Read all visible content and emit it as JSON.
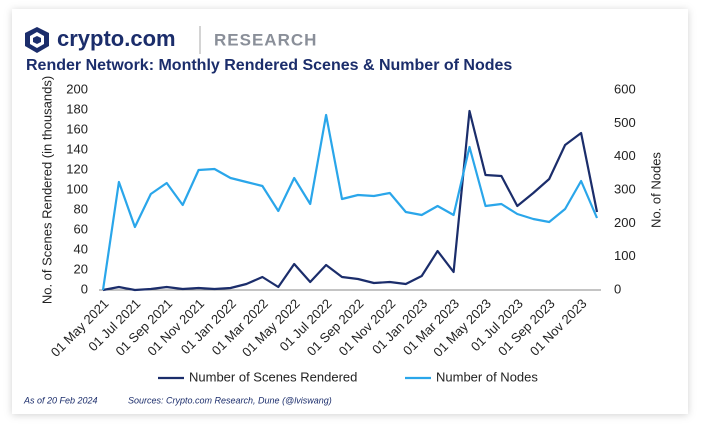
{
  "header": {
    "brand": "crypto.com",
    "section": "RESEARCH"
  },
  "chart_data": {
    "type": "line",
    "title": "Render Network: Monthly Rendered Scenes & Number of Nodes",
    "y_label": "No. of Scenes Rendered (in thousands)",
    "y2_label": "No. of Nodes",
    "categories": [
      "01 May 2021",
      null,
      "01 Jul 2021",
      null,
      "01 Sep 2021",
      null,
      "01 Nov 2021",
      null,
      "01 Jan 2022",
      null,
      "01 Mar 2022",
      null,
      "01 May 2022",
      null,
      "01 Jul 2022",
      null,
      "01 Sep 2022",
      null,
      "01 Nov 2022",
      null,
      "01 Jan 2023",
      null,
      "01 Mar 2023",
      null,
      "01 May 2023",
      null,
      "01 Jul 2023",
      null,
      "01 Sep 2023",
      null,
      "01 Nov 2023",
      null
    ],
    "series": [
      {
        "name": "Number of Scenes Rendered",
        "color": "#1b2d6b",
        "axis": "y",
        "values": [
          0,
          3,
          0,
          1,
          3,
          1,
          2,
          1,
          2,
          6,
          13,
          3,
          26,
          8,
          25,
          13,
          11,
          7,
          8,
          6,
          14,
          39,
          18,
          179,
          115,
          114,
          84,
          97,
          111,
          145,
          157,
          78
        ]
      },
      {
        "name": "Number of Nodes",
        "color": "#2aa6ea",
        "axis": "y2",
        "values": [
          0,
          324,
          189,
          288,
          321,
          255,
          360,
          363,
          336,
          324,
          312,
          237,
          336,
          258,
          525,
          273,
          285,
          282,
          291,
          234,
          225,
          252,
          225,
          429,
          252,
          258,
          228,
          213,
          204,
          243,
          327,
          216
        ]
      }
    ],
    "ylim": [
      0,
      200
    ],
    "yticks": [
      0,
      20,
      40,
      60,
      80,
      100,
      120,
      140,
      160,
      180,
      200
    ],
    "y2lim": [
      0,
      600
    ],
    "y2ticks": [
      0,
      100,
      200,
      300,
      400,
      500,
      600
    ],
    "legend": "bottom"
  },
  "footer": {
    "date_note": "As of 20 Feb 2024",
    "sources": "Sources: Crypto.com Research, Dune (@lviswang)"
  }
}
